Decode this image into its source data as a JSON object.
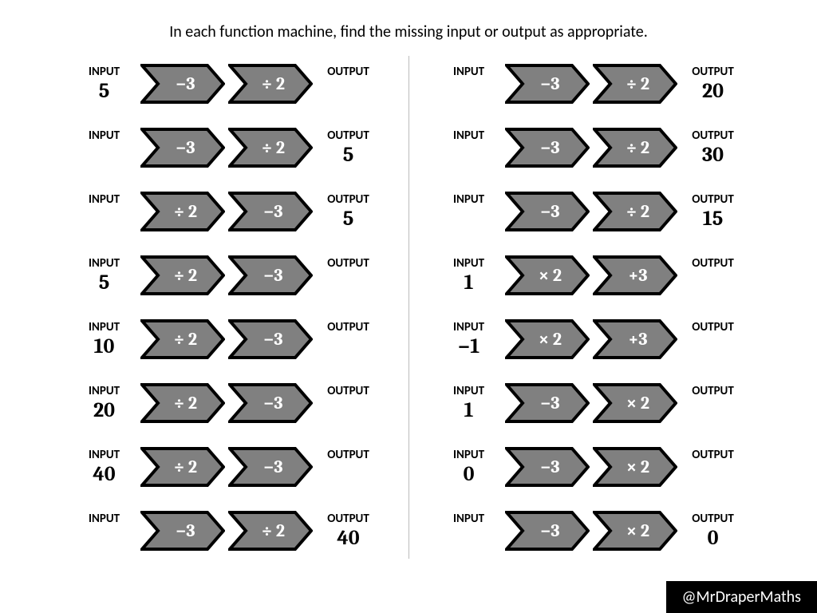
{
  "title": "In each function machine, find the missing input or output as appropriate.",
  "io_labels": {
    "input": "INPUT",
    "output": "OUTPUT"
  },
  "footer": "@MrDraperMaths",
  "colors": {
    "arrow_fill": "#808080",
    "arrow_stroke": "#000000",
    "arrow_text": "#ffffff",
    "bg": "#ffffff"
  },
  "left": [
    {
      "input": "5",
      "op1": "−3",
      "op2": "÷ 2",
      "output": ""
    },
    {
      "input": "",
      "op1": "−3",
      "op2": "÷ 2",
      "output": "5"
    },
    {
      "input": "",
      "op1": "÷ 2",
      "op2": "−3",
      "output": "5"
    },
    {
      "input": "5",
      "op1": "÷ 2",
      "op2": "−3",
      "output": ""
    },
    {
      "input": "10",
      "op1": "÷ 2",
      "op2": "−3",
      "output": ""
    },
    {
      "input": "20",
      "op1": "÷ 2",
      "op2": "−3",
      "output": ""
    },
    {
      "input": "40",
      "op1": "÷ 2",
      "op2": "−3",
      "output": ""
    },
    {
      "input": "",
      "op1": "−3",
      "op2": "÷ 2",
      "output": "40"
    }
  ],
  "right": [
    {
      "input": "",
      "op1": "−3",
      "op2": "÷ 2",
      "output": "20"
    },
    {
      "input": "",
      "op1": "−3",
      "op2": "÷ 2",
      "output": "30"
    },
    {
      "input": "",
      "op1": "−3",
      "op2": "÷ 2",
      "output": "15"
    },
    {
      "input": "1",
      "op1": "× 2",
      "op2": "+3",
      "output": ""
    },
    {
      "input": "−1",
      "op1": "× 2",
      "op2": "+3",
      "output": ""
    },
    {
      "input": "1",
      "op1": "−3",
      "op2": "× 2",
      "output": ""
    },
    {
      "input": "0",
      "op1": "−3",
      "op2": "× 2",
      "output": ""
    },
    {
      "input": "",
      "op1": "−3",
      "op2": "× 2",
      "output": "0"
    }
  ]
}
